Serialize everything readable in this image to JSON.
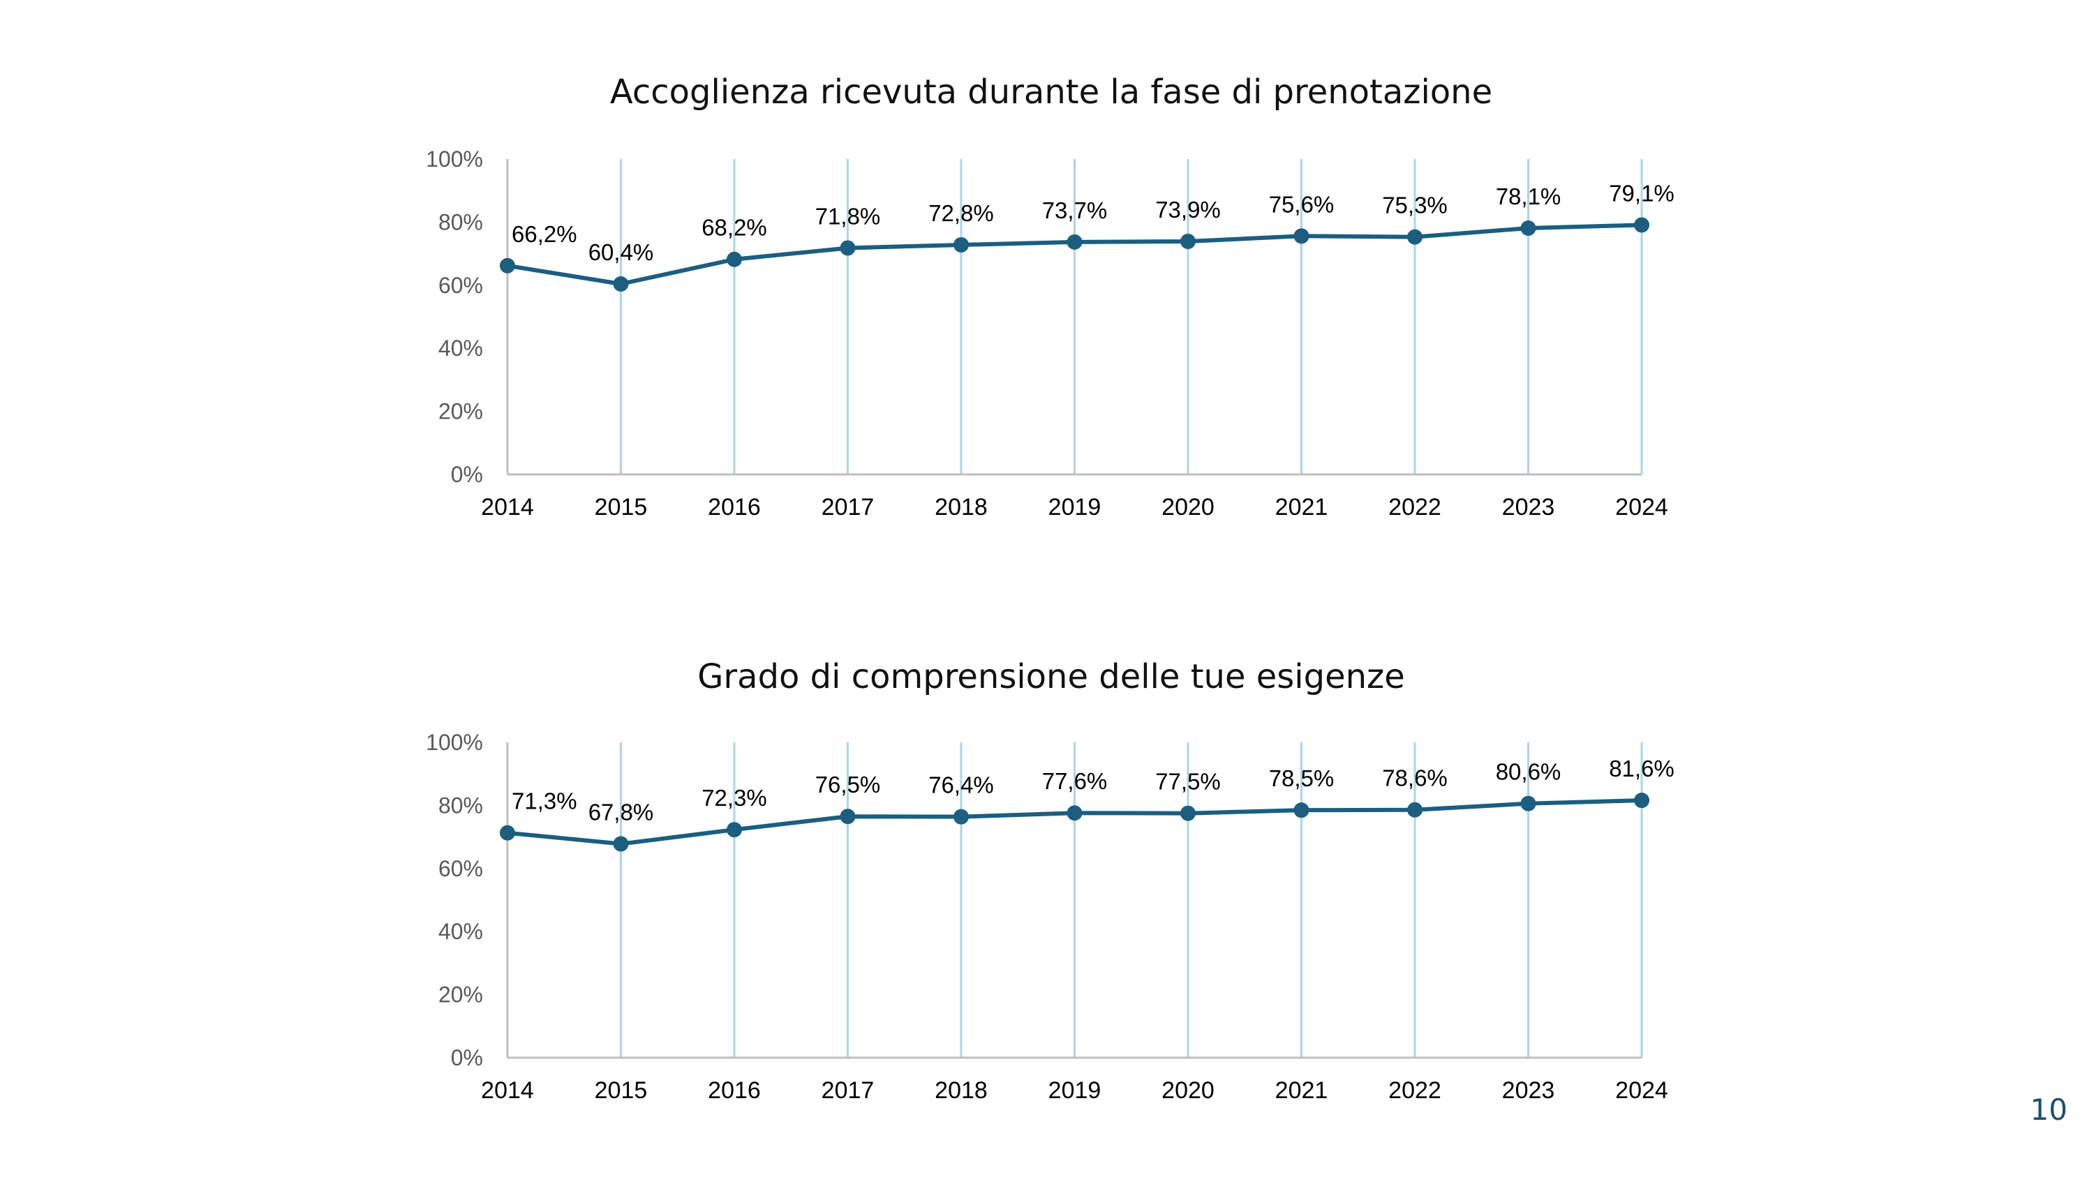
{
  "page": {
    "number": "10"
  },
  "colors": {
    "line": "#1b5e80",
    "gridline": "#a9d6ea",
    "axis": "#bfbfbf",
    "ytick": "#595959"
  },
  "chart_data": [
    {
      "type": "line",
      "title": "Accoglienza ricevuta durante la fase di prenotazione",
      "xlabel": "",
      "ylabel": "",
      "categories": [
        "2014",
        "2015",
        "2016",
        "2017",
        "2018",
        "2019",
        "2020",
        "2021",
        "2022",
        "2023",
        "2024"
      ],
      "values": [
        66.2,
        60.4,
        68.2,
        71.8,
        72.8,
        73.7,
        73.9,
        75.6,
        75.3,
        78.1,
        79.1
      ],
      "data_labels": [
        "66,2%",
        "60,4%",
        "68,2%",
        "71,8%",
        "72,8%",
        "73,7%",
        "73,9%",
        "75,6%",
        "75,3%",
        "78,1%",
        "79,1%"
      ],
      "ylim": [
        0,
        100
      ],
      "yticks": [
        "0%",
        "20%",
        "40%",
        "60%",
        "80%",
        "100%"
      ],
      "grid": "vertical",
      "legend": "none"
    },
    {
      "type": "line",
      "title": "Grado di comprensione delle tue esigenze",
      "xlabel": "",
      "ylabel": "",
      "categories": [
        "2014",
        "2015",
        "2016",
        "2017",
        "2018",
        "2019",
        "2020",
        "2021",
        "2022",
        "2023",
        "2024"
      ],
      "values": [
        71.3,
        67.8,
        72.3,
        76.5,
        76.4,
        77.6,
        77.5,
        78.5,
        78.6,
        80.6,
        81.6
      ],
      "data_labels": [
        "71,3%",
        "67,8%",
        "72,3%",
        "76,5%",
        "76,4%",
        "77,6%",
        "77,5%",
        "78,5%",
        "78,6%",
        "80,6%",
        "81,6%"
      ],
      "ylim": [
        0,
        100
      ],
      "yticks": [
        "0%",
        "20%",
        "40%",
        "60%",
        "80%",
        "100%"
      ],
      "grid": "vertical",
      "legend": "none"
    }
  ]
}
